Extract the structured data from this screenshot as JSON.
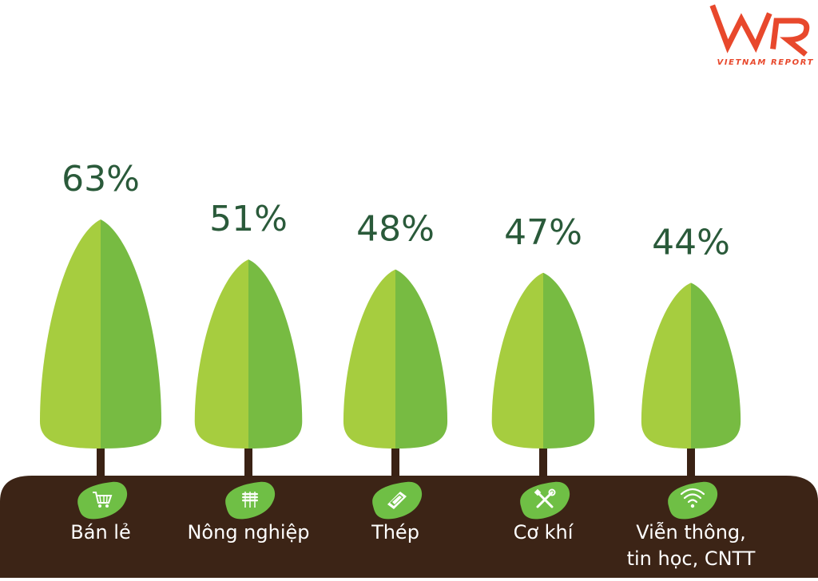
{
  "brand": {
    "logo_text": "VNR",
    "tagline": "VIETNAM REPORT",
    "accent_color": "#e8482c"
  },
  "chart_data": {
    "type": "bar",
    "title": "",
    "xlabel": "",
    "ylabel": "",
    "ylim": [
      0,
      70
    ],
    "grid": false,
    "legend": "none",
    "categories": [
      "Bán lẻ",
      "Nông nghiệp",
      "Thép",
      "Cơ khí",
      "Viễn thông, tin học, CNTT"
    ],
    "values": [
      63,
      51,
      48,
      47,
      44
    ],
    "value_labels": [
      "63%",
      "51%",
      "48%",
      "47%",
      "44%"
    ],
    "category_icons": [
      "shopping-cart-icon",
      "wheat-icon",
      "steel-beam-icon",
      "tools-icon",
      "wifi-icon"
    ],
    "colors": {
      "tree_light": "#a6cd3f",
      "tree_dark": "#77bb42",
      "trunk": "#3a2214",
      "ground": "#3c2416",
      "badge": "#6fbf45",
      "value_text": "#2a5a3a",
      "label_text": "#ffffff"
    }
  }
}
